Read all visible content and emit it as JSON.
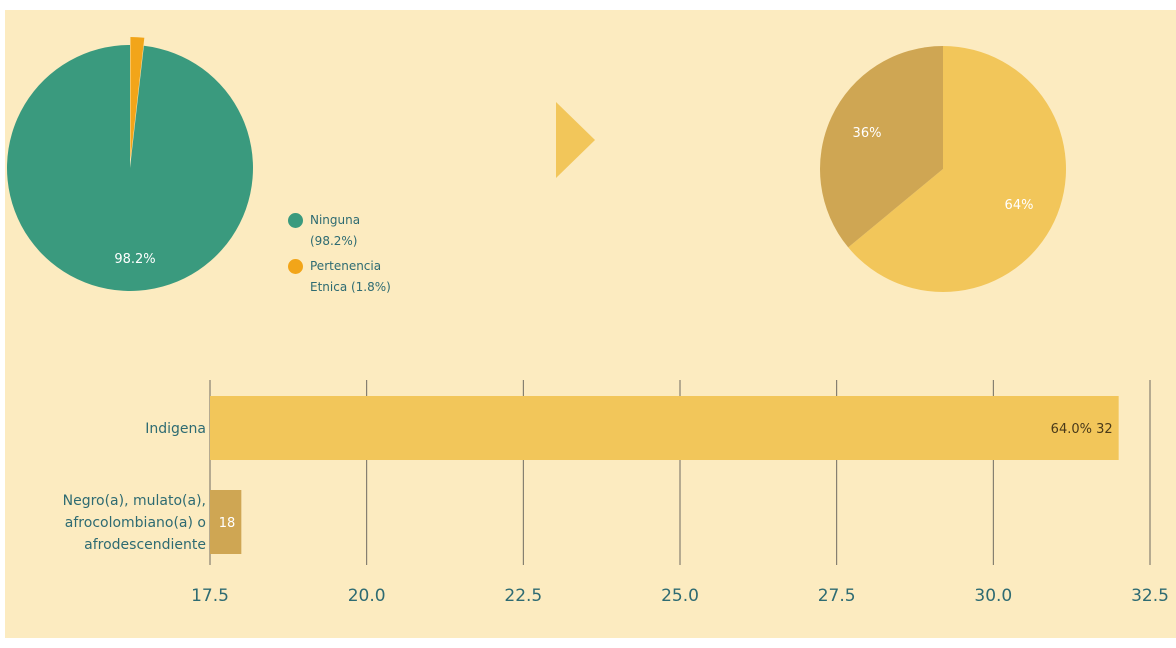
{
  "colors": {
    "panel_bg": "#fcebc0",
    "green": "#3a9a7e",
    "orange": "#f2a519",
    "yellow": "#f2c65a",
    "tan": "#cfa653",
    "text_teal": "#2e6b72",
    "grid": "#6e6a60"
  },
  "legend": {
    "items": [
      {
        "label": "Ninguna\n(98.2%)",
        "color": "#3a9a7e"
      },
      {
        "label": "Pertenencia\nEtnica (1.8%)",
        "color": "#f2a519"
      }
    ]
  },
  "arrow_icon": "triangle-right-icon",
  "chart_data": [
    {
      "type": "pie",
      "labels": [
        "Ninguna",
        "Pertenencia Etnica"
      ],
      "values": [
        98.2,
        1.8
      ],
      "slice_labels": [
        "98.2%",
        ""
      ],
      "colors": [
        "#3a9a7e",
        "#f2a519"
      ]
    },
    {
      "type": "pie",
      "labels": [
        "Indigena",
        "Negro(a), mulato(a), afrocolombiano(a) o afrodescendiente"
      ],
      "values": [
        64,
        36
      ],
      "slice_labels": [
        "64%",
        "36%"
      ],
      "colors": [
        "#f2c65a",
        "#cfa653"
      ]
    },
    {
      "type": "bar",
      "orientation": "horizontal",
      "categories": [
        "Indigena",
        "Negro(a), mulato(a),\nafrocolombiano(a) o\nafrodescendiente"
      ],
      "values": [
        32,
        18
      ],
      "data_labels": [
        "64.0% 32",
        "18"
      ],
      "colors": [
        "#f2c65a",
        "#cfa653"
      ],
      "xlim": [
        17.5,
        32.5
      ],
      "xticks": [
        "17.5",
        "20.0",
        "22.5",
        "25.0",
        "27.5",
        "30.0",
        "32.5"
      ],
      "grid": true
    }
  ]
}
